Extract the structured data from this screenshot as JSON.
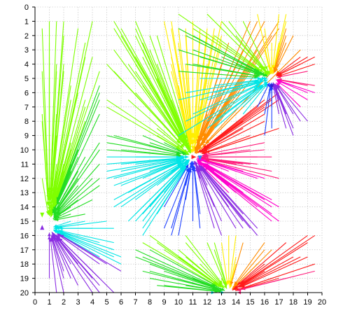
{
  "chart_data": {
    "type": "quiver",
    "title": "",
    "xlabel": "",
    "ylabel": "",
    "xlim": [
      0,
      20
    ],
    "ylim": [
      20,
      0
    ],
    "y_inverted": true,
    "grid": true,
    "legend": "none",
    "x_ticks": [
      "0",
      "1",
      "2",
      "3",
      "4",
      "5",
      "6",
      "7",
      "8",
      "9",
      "10",
      "11",
      "12",
      "13",
      "14",
      "15",
      "16",
      "17",
      "18",
      "19",
      "20"
    ],
    "y_ticks": [
      "0",
      "1",
      "2",
      "3",
      "4",
      "5",
      "6",
      "7",
      "8",
      "9",
      "10",
      "11",
      "12",
      "13",
      "14",
      "15",
      "16",
      "17",
      "18",
      "19",
      "20"
    ],
    "sinks": [
      {
        "x": 0.5,
        "y": 15.5,
        "color": "#8a2be2",
        "dir": "up"
      },
      {
        "x": 0.5,
        "y": 14.5,
        "color": "#7fff00",
        "dir": "down"
      },
      {
        "x": 11.0,
        "y": 10.5,
        "color": "#ff2020",
        "dir": "right"
      },
      {
        "x": 11.5,
        "y": 10.5,
        "color": "#1e90ff",
        "dir": "down"
      },
      {
        "x": 16.5,
        "y": 5.5,
        "color": "#3020d0",
        "dir": "down"
      }
    ],
    "fields": [
      {
        "name": "left-top",
        "target": [
          1.0,
          15.0
        ],
        "x": [
          0.5,
          4.5
        ],
        "y": [
          0.5,
          14.5
        ],
        "spacing": 0.5,
        "color_scheme": "green"
      },
      {
        "name": "left-bottom",
        "target": [
          1.0,
          15.5
        ],
        "x": [
          1.0,
          6.0
        ],
        "y": [
          15.0,
          20.0
        ],
        "spacing": 0.5,
        "color_scheme": "blue"
      },
      {
        "name": "center",
        "target": [
          11.0,
          10.5
        ],
        "x": [
          5.0,
          17.0
        ],
        "y": [
          1.0,
          16.0
        ],
        "spacing": 0.5,
        "color_scheme": "rainbow"
      },
      {
        "name": "top-right",
        "target": [
          16.5,
          5.0
        ],
        "x": [
          10.0,
          19.5
        ],
        "y": [
          0.5,
          9.0
        ],
        "spacing": 0.5,
        "color_scheme": "rainbow"
      },
      {
        "name": "bottom-right",
        "target": [
          13.5,
          20.0
        ],
        "x": [
          7.0,
          19.5
        ],
        "y": [
          16.0,
          20.0
        ],
        "spacing": 0.5,
        "color_scheme": "rainbow"
      }
    ],
    "colors": {
      "red": "#ff1a1a",
      "orange": "#ff8c00",
      "yellow": "#ffee00",
      "lime": "#7fff00",
      "green": "#22dd22",
      "cyan": "#00e5e5",
      "blue": "#1e40ff",
      "violet": "#8a2be2",
      "magenta": "#ff00cc",
      "pink": "#ff1a7a"
    }
  }
}
